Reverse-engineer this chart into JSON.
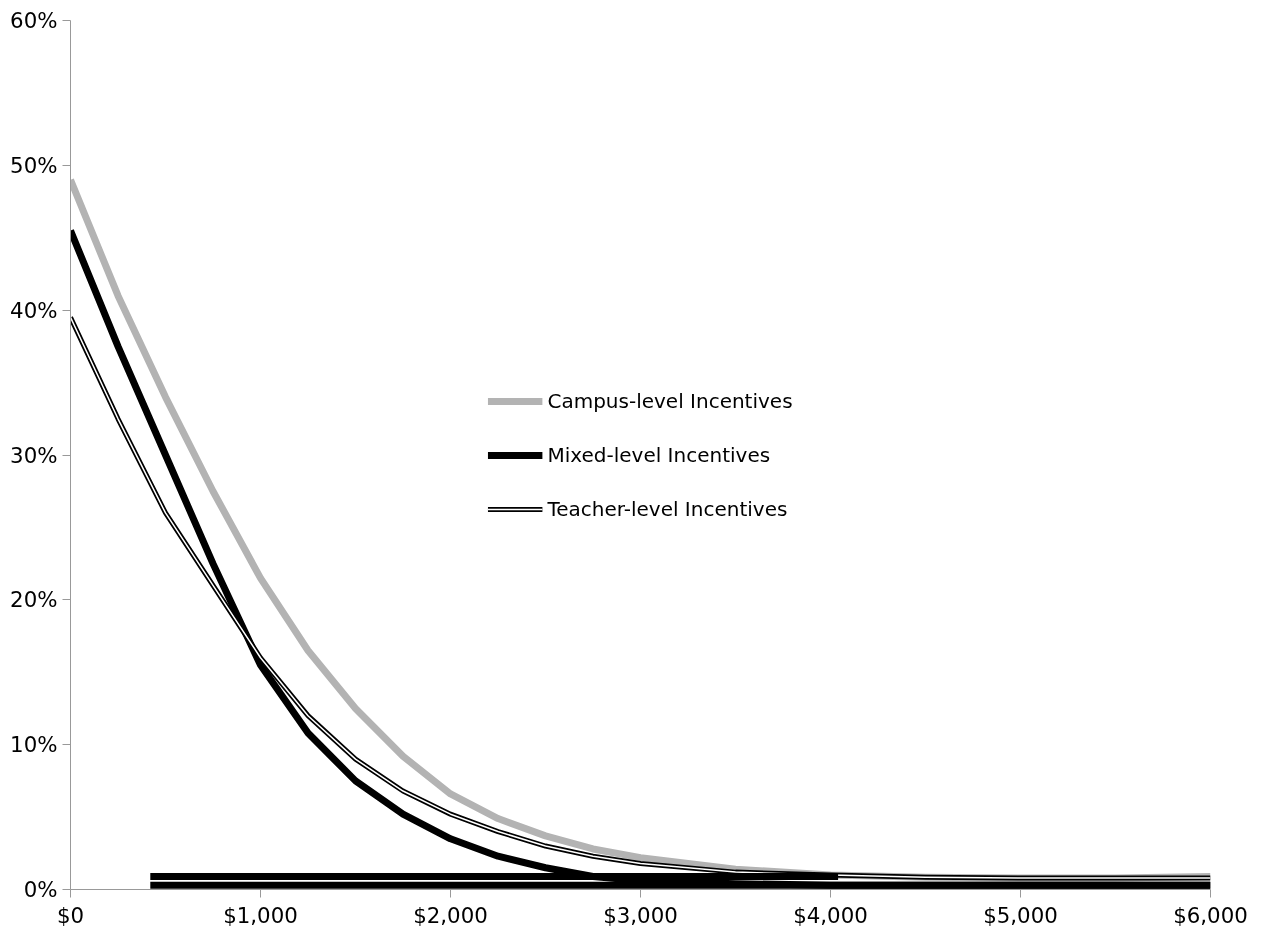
{
  "chart_data": {
    "type": "line",
    "x": [
      0,
      250,
      500,
      750,
      1000,
      1250,
      1500,
      1750,
      2000,
      2250,
      2500,
      2750,
      3000,
      3500,
      4000,
      4500,
      5000,
      5500,
      6000
    ],
    "series": [
      {
        "name": "Campus-level Incentives",
        "color": "#b3b3b3",
        "values": [
          49,
          41,
          34,
          27.5,
          21.5,
          16.5,
          12.5,
          9.2,
          6.6,
          4.9,
          3.7,
          2.8,
          2.2,
          1.4,
          1.0,
          0.85,
          0.8,
          0.8,
          0.9
        ]
      },
      {
        "name": "Mixed-level Incentives",
        "color": "#000000",
        "values": [
          45.5,
          37.5,
          30,
          22.5,
          15.5,
          10.8,
          7.5,
          5.2,
          3.5,
          2.3,
          1.5,
          0.9,
          0.6,
          0.4,
          0.3,
          0.3,
          0.3,
          0.3,
          0.3
        ]
      },
      {
        "name": "Teacher-level Incentives",
        "color": "#000000",
        "values": [
          39.5,
          32.5,
          26,
          21,
          16,
          12,
          9,
          6.8,
          5.2,
          4,
          3,
          2.3,
          1.8,
          1.2,
          1.0,
          0.85,
          0.8,
          0.8,
          0.8
        ]
      },
      {
        "color": "#000000",
        "x": [
          420,
          4040
        ],
        "values": [
          0.9,
          0.9
        ]
      },
      {
        "color": "#000000",
        "x": [
          420,
          6000
        ],
        "values": [
          0.3,
          0.3
        ]
      }
    ],
    "xlim": [
      0,
      6000
    ],
    "xticks": [
      {
        "value": 0,
        "label": "$0"
      },
      {
        "value": 1000,
        "label": "$1,000"
      },
      {
        "value": 2000,
        "label": "$2,000"
      },
      {
        "value": 3000,
        "label": "$3,000"
      },
      {
        "value": 4000,
        "label": "$4,000"
      },
      {
        "value": 5000,
        "label": "$5,000"
      },
      {
        "value": 6000,
        "label": "$6,000"
      }
    ],
    "ylim": [
      0,
      60
    ],
    "yticks": [
      {
        "value": 0,
        "label": "0%"
      },
      {
        "value": 10,
        "label": "10%"
      },
      {
        "value": 20,
        "label": "20%"
      },
      {
        "value": 30,
        "label": "30%"
      },
      {
        "value": 40,
        "label": "40%"
      },
      {
        "value": 50,
        "label": "50%"
      },
      {
        "value": 60,
        "label": "60%"
      }
    ],
    "grid": false,
    "legend": "center",
    "marker": "none",
    "line_style": "solid"
  }
}
